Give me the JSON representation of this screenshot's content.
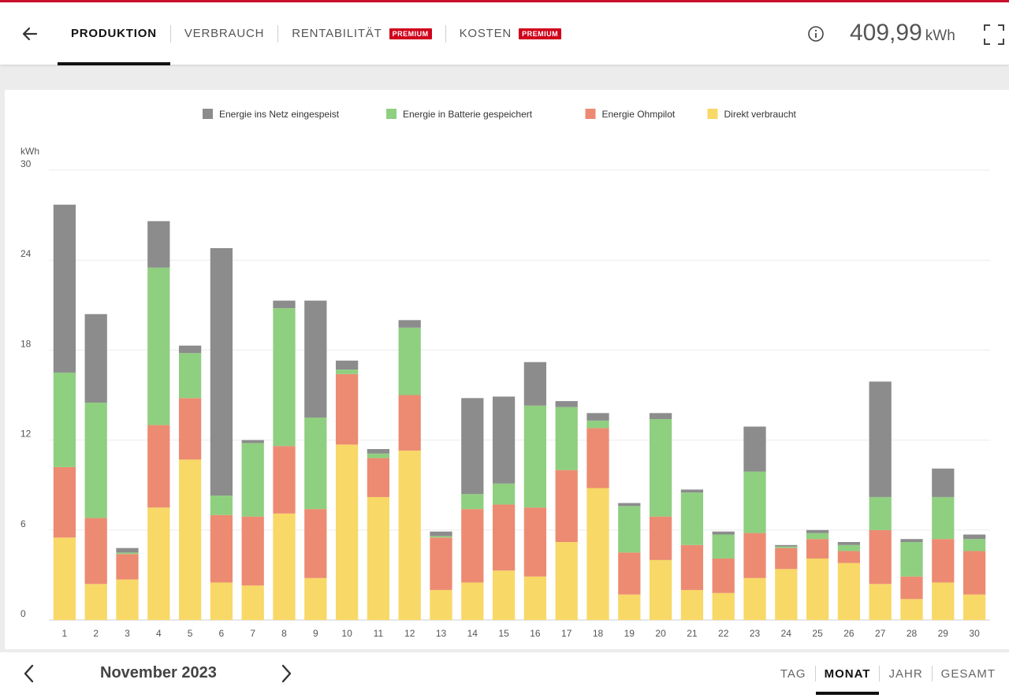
{
  "header": {
    "tabs": [
      {
        "label": "PRODUKTION",
        "active": true,
        "badge": ""
      },
      {
        "label": "VERBRAUCH",
        "active": false,
        "badge": ""
      },
      {
        "label": "RENTABILITÄT",
        "active": false,
        "badge": "PREMIUM"
      },
      {
        "label": "KOSTEN",
        "active": false,
        "badge": "PREMIUM"
      }
    ],
    "total_value": "409,99",
    "total_unit": "kWh",
    "icons": {
      "back": "arrow-left-icon",
      "info": "info-icon",
      "fullscreen": "fullscreen-icon"
    }
  },
  "colors": {
    "accent": "#c8102e",
    "premium_badge": "#d0021b",
    "grid": "#8c8c8c",
    "battery": "#8fcf80",
    "ohmpilot": "#ec8b72",
    "direct": "#f8d866"
  },
  "chart_data": {
    "type": "bar",
    "stacked": true,
    "ylabel": "kWh",
    "ylim": [
      0,
      30
    ],
    "yticks": [
      0,
      6,
      12,
      18,
      24,
      30
    ],
    "categories": [
      "1",
      "2",
      "3",
      "4",
      "5",
      "6",
      "7",
      "8",
      "9",
      "10",
      "11",
      "12",
      "13",
      "14",
      "15",
      "16",
      "17",
      "18",
      "19",
      "20",
      "21",
      "22",
      "23",
      "24",
      "25",
      "26",
      "27",
      "28",
      "29",
      "30"
    ],
    "legend_position": "top-center",
    "grid": true,
    "series": [
      {
        "name": "Direkt verbraucht",
        "color": "#f8d866",
        "values": [
          5.5,
          2.4,
          2.7,
          7.5,
          10.7,
          2.5,
          2.3,
          7.1,
          2.8,
          11.7,
          8.2,
          11.3,
          2.0,
          2.5,
          3.3,
          2.9,
          5.2,
          8.8,
          1.7,
          4.0,
          2.0,
          1.8,
          2.8,
          3.4,
          4.1,
          3.8,
          2.4,
          1.4,
          2.5,
          1.7
        ]
      },
      {
        "name": "Energie Ohmpilot",
        "color": "#ec8b72",
        "values": [
          4.7,
          4.4,
          1.7,
          5.5,
          4.1,
          4.5,
          4.6,
          4.5,
          4.6,
          4.7,
          2.6,
          3.7,
          3.5,
          4.9,
          4.4,
          4.6,
          4.8,
          4.0,
          2.8,
          2.9,
          3.0,
          2.3,
          3.0,
          1.4,
          1.3,
          0.8,
          3.6,
          1.5,
          2.9,
          2.9
        ]
      },
      {
        "name": "Energie in Batterie gespeichert",
        "color": "#8fcf80",
        "values": [
          6.3,
          7.7,
          0.1,
          10.5,
          3.0,
          1.3,
          4.9,
          9.2,
          6.1,
          0.3,
          0.3,
          4.5,
          0.1,
          1.0,
          1.4,
          6.8,
          4.2,
          0.5,
          3.1,
          6.5,
          3.5,
          1.6,
          4.1,
          0.1,
          0.4,
          0.4,
          2.2,
          2.3,
          2.8,
          0.8
        ]
      },
      {
        "name": "Energie ins Netz eingespeist",
        "color": "#8c8c8c",
        "values": [
          11.2,
          5.9,
          0.3,
          3.1,
          0.5,
          16.5,
          0.2,
          0.5,
          7.8,
          0.6,
          0.3,
          0.5,
          0.3,
          6.4,
          5.8,
          2.9,
          0.4,
          0.5,
          0.2,
          0.4,
          0.2,
          0.2,
          3.0,
          0.1,
          0.2,
          0.2,
          7.7,
          0.2,
          1.9,
          0.3
        ]
      }
    ],
    "legend_order": [
      "Energie ins Netz eingespeist",
      "Energie in Batterie gespeichert",
      "Energie Ohmpilot",
      "Direkt verbraucht"
    ]
  },
  "footer": {
    "period": "November 2023",
    "ranges": [
      {
        "label": "TAG",
        "active": false
      },
      {
        "label": "MONAT",
        "active": true
      },
      {
        "label": "JAHR",
        "active": false
      },
      {
        "label": "GESAMT",
        "active": false
      }
    ],
    "icons": {
      "prev": "chevron-left-icon",
      "next": "chevron-right-icon"
    }
  }
}
